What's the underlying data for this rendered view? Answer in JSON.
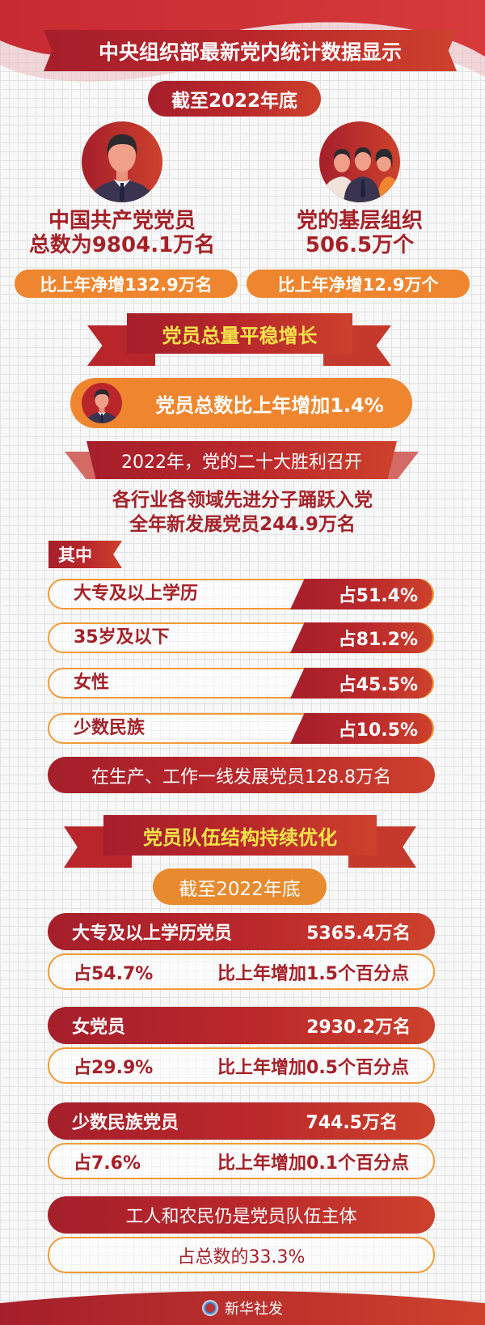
{
  "header": {
    "title": "中央组织部最新党内统计数据显示",
    "as_of": "截至2022年底"
  },
  "members": {
    "label": "中国共产党党员",
    "total": "总数为9804.1万名",
    "increase": "比上年净增132.9万名",
    "icon": "party-member-avatar-icon"
  },
  "orgs": {
    "label": "党的基层组织",
    "total": "506.5万个",
    "increase": "比上年净增12.9万个",
    "icon": "group-people-icon"
  },
  "section1": {
    "title": "党员总量平稳增长",
    "growth": "党员总数比上年增加1.4%",
    "banner": "2022年，党的二十大胜利召开",
    "line1": "各行业各领域先进分子踊跃入党",
    "line2": "全年新发展党员244.9万名",
    "tag": "其中",
    "rows": [
      {
        "label": "大专及以上学历",
        "value": "占51.4%"
      },
      {
        "label": "35岁及以下",
        "value": "占81.2%"
      },
      {
        "label": "女性",
        "value": "占45.5%"
      },
      {
        "label": "少数民族",
        "value": "占10.5%"
      }
    ],
    "frontline": "在生产、工作一线发展党员128.8万名"
  },
  "section2": {
    "title": "党员队伍结构持续优化",
    "as_of": "截至2022年底",
    "stats": [
      {
        "label": "大专及以上学历党员",
        "count": "5365.4万名",
        "share": "占54.7%",
        "change": "比上年增加1.5个百分点"
      },
      {
        "label": "女党员",
        "count": "2930.2万名",
        "share": "占29.9%",
        "change": "比上年增加0.5个百分点"
      },
      {
        "label": "少数民族党员",
        "count": "744.5万名",
        "share": "占7.6%",
        "change": "比上年增加0.1个百分点"
      }
    ],
    "workers": "工人和农民仍是党员队伍主体",
    "workers_share": "占总数的33.3%"
  },
  "footer": {
    "source": "新华社发",
    "logo": "xinhua-logo-icon"
  },
  "colors": {
    "red": "#b9272b",
    "orange": "#ef862f",
    "title_yellow": "#f5e34a",
    "outline": "#f19b38"
  }
}
